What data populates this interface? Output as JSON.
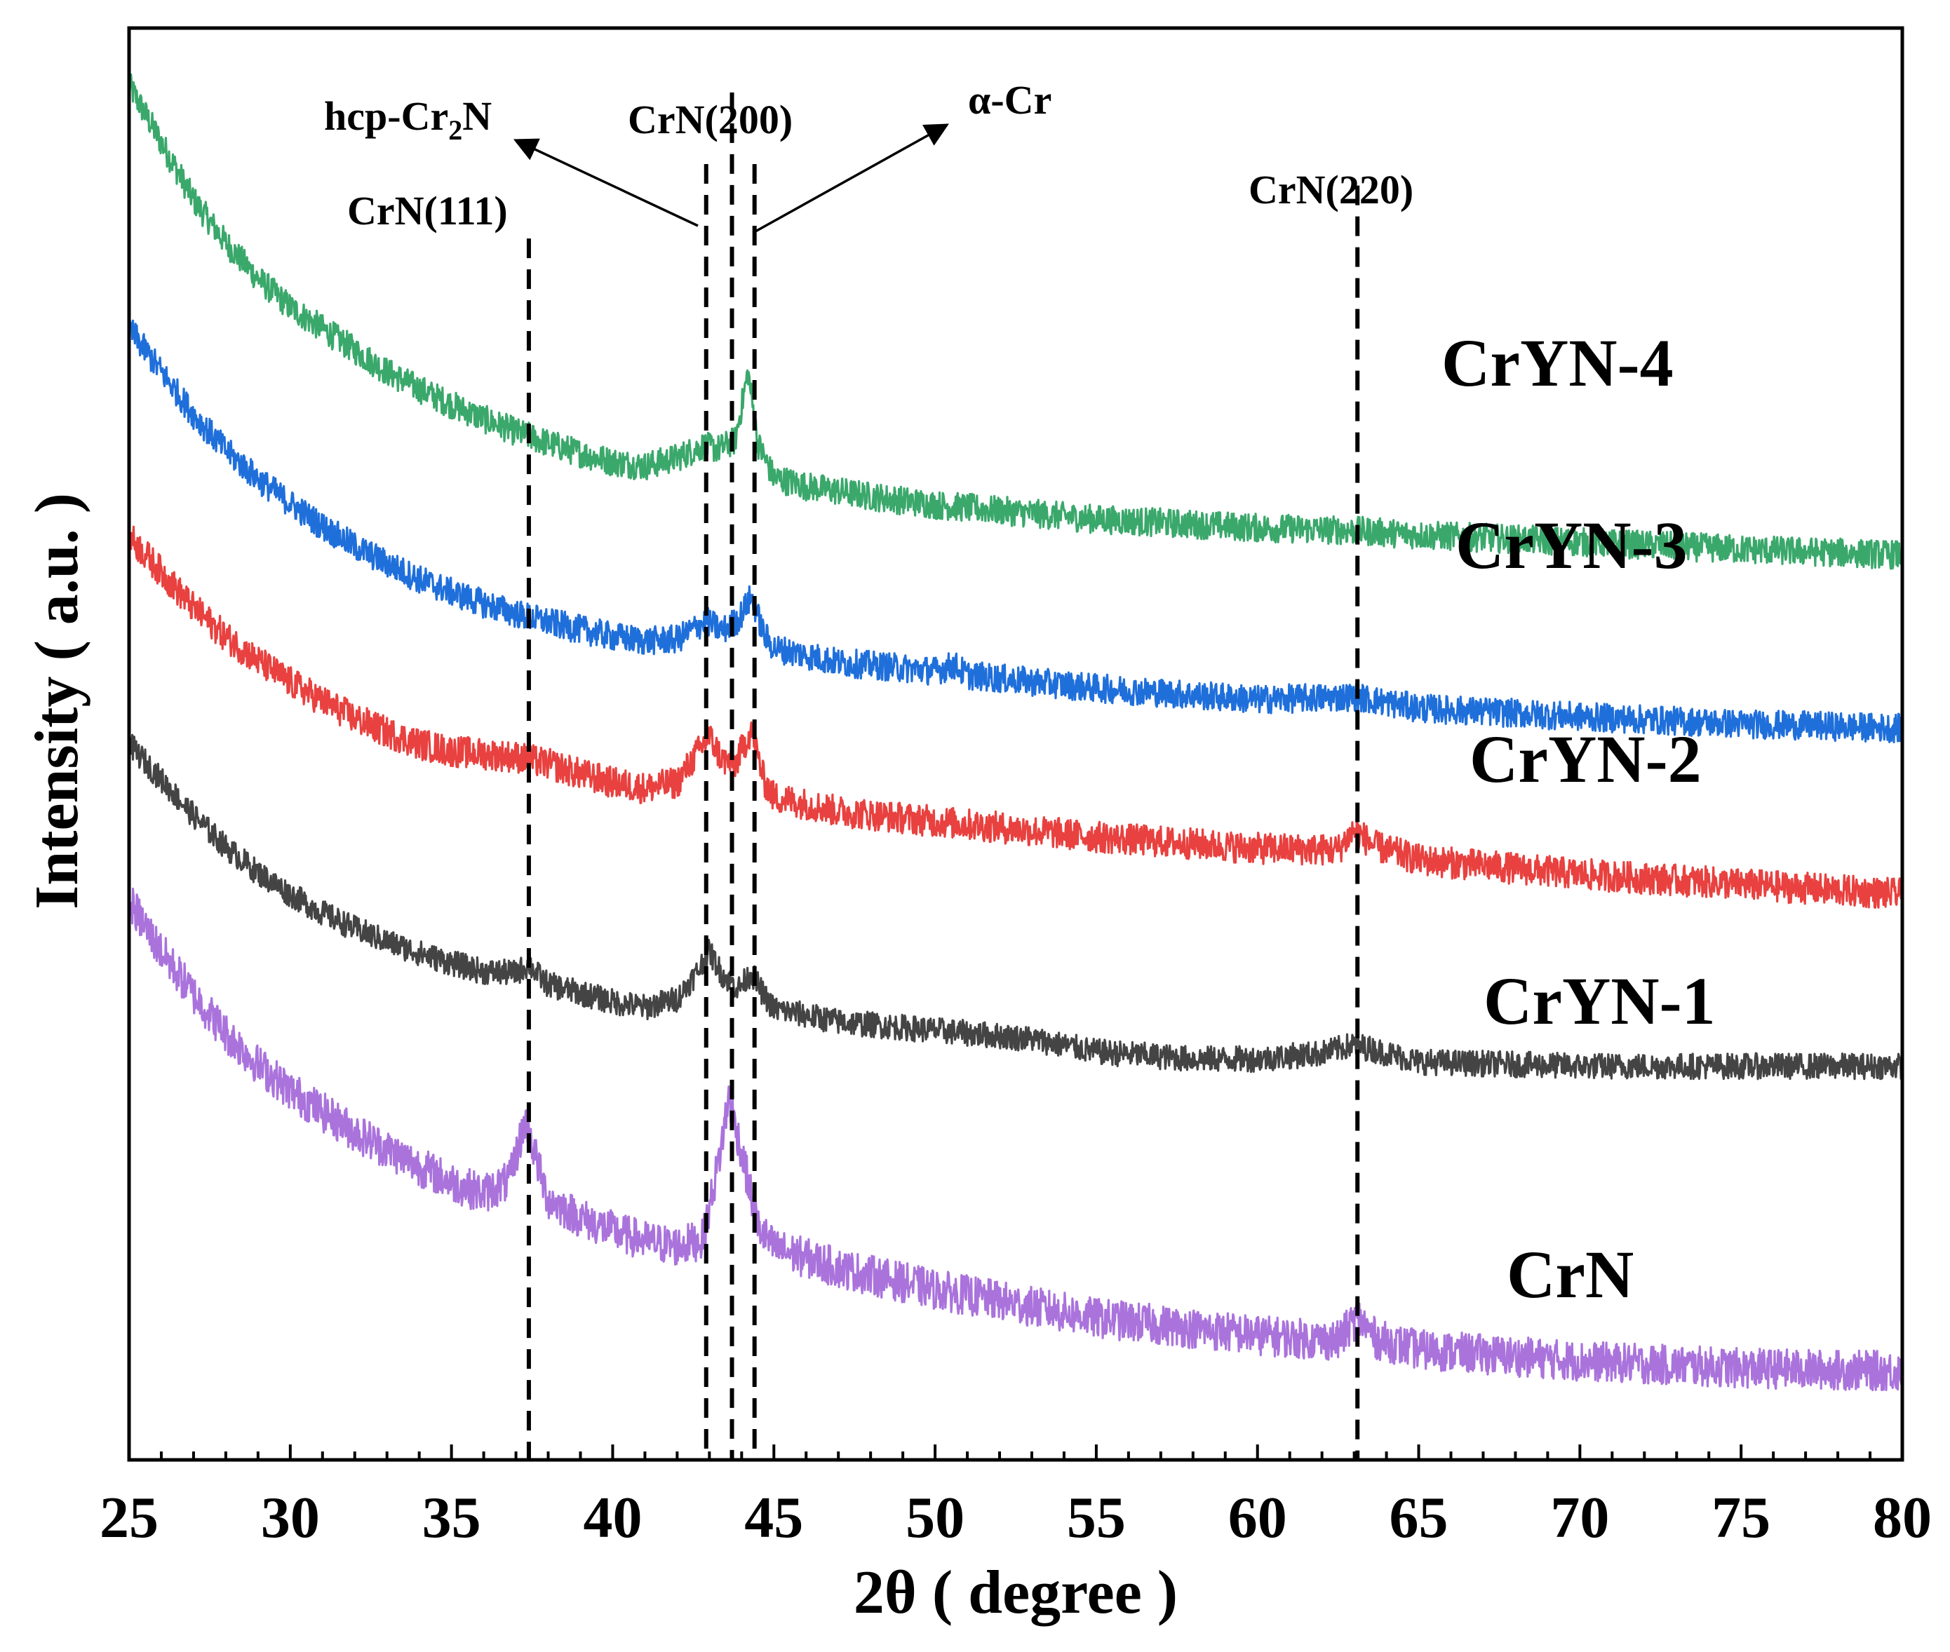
{
  "chart_data": {
    "type": "line",
    "title": "",
    "xlabel": "2θ ( degree )",
    "ylabel": "Intensity ( a.u. )",
    "xlim": [
      25,
      80
    ],
    "ylim": [
      0,
      100
    ],
    "x_ticks": [
      25,
      30,
      35,
      40,
      45,
      50,
      55,
      60,
      65,
      70,
      75,
      80
    ],
    "x_tick_labels": [
      "25",
      "30",
      "35",
      "40",
      "45",
      "50",
      "55",
      "60",
      "65",
      "70",
      "75",
      "80"
    ],
    "y_ticks_shown": false,
    "grid": false,
    "legend": "none (series labelled directly on the right)",
    "series": [
      {
        "name": "CrYN-4",
        "label": "CrYN-4",
        "color": "#3aa86b",
        "noise": 1.0,
        "points": [
          [
            25.0,
            96.0
          ],
          [
            26.0,
            92.0
          ],
          [
            27.0,
            88.0
          ],
          [
            28.0,
            85.0
          ],
          [
            29.0,
            82.5
          ],
          [
            30.0,
            80.5
          ],
          [
            31.0,
            79.0
          ],
          [
            32.0,
            77.5
          ],
          [
            33.0,
            76.0
          ],
          [
            34.0,
            74.8
          ],
          [
            35.0,
            73.7
          ],
          [
            36.0,
            72.7
          ],
          [
            37.0,
            71.8
          ],
          [
            38.0,
            71.0
          ],
          [
            39.0,
            70.3
          ],
          [
            40.0,
            69.7
          ],
          [
            41.0,
            69.4
          ],
          [
            42.0,
            70.0
          ],
          [
            42.8,
            70.8
          ],
          [
            43.3,
            70.6
          ],
          [
            43.8,
            71.2
          ],
          [
            44.2,
            76.0
          ],
          [
            44.5,
            71.0
          ],
          [
            45.0,
            68.6
          ],
          [
            46.0,
            68.0
          ],
          [
            48.0,
            67.3
          ],
          [
            50.0,
            66.7
          ],
          [
            55.0,
            65.7
          ],
          [
            60.0,
            65.1
          ],
          [
            63.0,
            64.9
          ],
          [
            65.0,
            64.6
          ],
          [
            70.0,
            64.1
          ],
          [
            75.0,
            63.6
          ],
          [
            80.0,
            63.2
          ]
        ]
      },
      {
        "name": "CrYN-3",
        "label": "CrYN-3",
        "color": "#1f6fdb",
        "noise": 1.0,
        "points": [
          [
            25.0,
            79.0
          ],
          [
            26.0,
            76.0
          ],
          [
            27.0,
            73.0
          ],
          [
            28.0,
            70.5
          ],
          [
            29.0,
            68.5
          ],
          [
            30.0,
            66.8
          ],
          [
            31.0,
            65.2
          ],
          [
            32.0,
            63.8
          ],
          [
            33.0,
            62.6
          ],
          [
            34.0,
            61.5
          ],
          [
            35.0,
            60.6
          ],
          [
            36.0,
            59.8
          ],
          [
            37.0,
            59.1
          ],
          [
            38.0,
            58.5
          ],
          [
            39.0,
            58.0
          ],
          [
            40.0,
            57.5
          ],
          [
            41.0,
            57.2
          ],
          [
            42.0,
            57.3
          ],
          [
            42.9,
            58.6
          ],
          [
            43.4,
            57.9
          ],
          [
            43.9,
            58.7
          ],
          [
            44.3,
            60.3
          ],
          [
            44.7,
            57.6
          ],
          [
            45.0,
            56.7
          ],
          [
            47.0,
            55.7
          ],
          [
            50.0,
            55.1
          ],
          [
            50.6,
            55.5
          ],
          [
            51.0,
            54.8
          ],
          [
            55.0,
            53.9
          ],
          [
            60.0,
            53.1
          ],
          [
            63.0,
            53.3
          ],
          [
            65.0,
            52.5
          ],
          [
            70.0,
            51.9
          ],
          [
            75.0,
            51.4
          ],
          [
            80.0,
            51.1
          ]
        ]
      },
      {
        "name": "CrYN-2",
        "label": "CrYN-2",
        "color": "#e8413f",
        "noise": 1.1,
        "points": [
          [
            25.0,
            64.5
          ],
          [
            26.0,
            62.0
          ],
          [
            27.0,
            59.5
          ],
          [
            28.0,
            57.5
          ],
          [
            29.0,
            55.8
          ],
          [
            30.0,
            54.3
          ],
          [
            31.0,
            53.0
          ],
          [
            32.0,
            51.8
          ],
          [
            33.0,
            50.8
          ],
          [
            34.0,
            50.0
          ],
          [
            35.0,
            49.5
          ],
          [
            36.0,
            49.3
          ],
          [
            37.0,
            49.1
          ],
          [
            38.0,
            48.6
          ],
          [
            39.0,
            47.9
          ],
          [
            40.0,
            47.3
          ],
          [
            41.0,
            46.9
          ],
          [
            42.0,
            47.3
          ],
          [
            42.6,
            49.3
          ],
          [
            43.0,
            50.5
          ],
          [
            43.4,
            48.9
          ],
          [
            43.8,
            48.6
          ],
          [
            44.3,
            51.0
          ],
          [
            44.7,
            47.4
          ],
          [
            45.0,
            46.3
          ],
          [
            47.0,
            45.3
          ],
          [
            50.0,
            44.6
          ],
          [
            55.0,
            43.5
          ],
          [
            60.0,
            42.7
          ],
          [
            62.5,
            42.6
          ],
          [
            63.0,
            44.0
          ],
          [
            63.6,
            42.9
          ],
          [
            65.0,
            41.9
          ],
          [
            70.0,
            40.9
          ],
          [
            75.0,
            40.2
          ],
          [
            80.0,
            39.5
          ]
        ]
      },
      {
        "name": "CrYN-1",
        "label": "CrYN-1",
        "color": "#444444",
        "noise": 0.9,
        "points": [
          [
            25.0,
            50.0
          ],
          [
            26.0,
            47.5
          ],
          [
            27.0,
            45.0
          ],
          [
            28.0,
            42.8
          ],
          [
            29.0,
            41.0
          ],
          [
            30.0,
            39.5
          ],
          [
            31.0,
            38.2
          ],
          [
            32.0,
            37.1
          ],
          [
            33.0,
            36.2
          ],
          [
            34.0,
            35.4
          ],
          [
            35.0,
            34.7
          ],
          [
            36.0,
            34.1
          ],
          [
            37.0,
            34.0
          ],
          [
            37.4,
            34.6
          ],
          [
            37.8,
            33.6
          ],
          [
            38.0,
            33.2
          ],
          [
            39.0,
            32.6
          ],
          [
            40.0,
            32.0
          ],
          [
            41.0,
            31.6
          ],
          [
            42.0,
            32.2
          ],
          [
            42.6,
            34.0
          ],
          [
            43.0,
            35.5
          ],
          [
            43.4,
            33.9
          ],
          [
            43.9,
            32.9
          ],
          [
            44.3,
            34.0
          ],
          [
            44.7,
            32.4
          ],
          [
            45.0,
            31.5
          ],
          [
            47.0,
            30.6
          ],
          [
            50.0,
            30.0
          ],
          [
            53.0,
            29.4
          ],
          [
            55.0,
            28.5
          ],
          [
            58.0,
            28.0
          ],
          [
            60.0,
            28.0
          ],
          [
            62.0,
            28.4
          ],
          [
            63.0,
            29.0
          ],
          [
            64.0,
            28.4
          ],
          [
            65.0,
            27.8
          ],
          [
            70.0,
            27.5
          ],
          [
            75.0,
            27.5
          ],
          [
            80.0,
            27.5
          ]
        ]
      },
      {
        "name": "CrN",
        "label": "CrN",
        "color": "#aa73dc",
        "noise": 1.4,
        "points": [
          [
            25.0,
            39.0
          ],
          [
            26.0,
            35.5
          ],
          [
            27.0,
            32.5
          ],
          [
            28.0,
            29.8
          ],
          [
            29.0,
            27.6
          ],
          [
            30.0,
            25.8
          ],
          [
            31.0,
            24.3
          ],
          [
            32.0,
            22.9
          ],
          [
            33.0,
            21.7
          ],
          [
            34.0,
            20.5
          ],
          [
            35.0,
            19.4
          ],
          [
            36.0,
            18.6
          ],
          [
            36.8,
            19.5
          ],
          [
            37.3,
            23.8
          ],
          [
            37.8,
            19.6
          ],
          [
            38.0,
            18.2
          ],
          [
            39.0,
            16.9
          ],
          [
            40.0,
            16.0
          ],
          [
            41.0,
            15.3
          ],
          [
            42.0,
            14.9
          ],
          [
            42.8,
            15.4
          ],
          [
            43.3,
            21.0
          ],
          [
            43.6,
            25.3
          ],
          [
            44.0,
            21.5
          ],
          [
            44.5,
            16.3
          ],
          [
            45.0,
            14.8
          ],
          [
            47.0,
            13.4
          ],
          [
            50.0,
            11.9
          ],
          [
            55.0,
            9.9
          ],
          [
            60.0,
            8.7
          ],
          [
            62.5,
            8.3
          ],
          [
            63.1,
            10.0
          ],
          [
            63.7,
            8.4
          ],
          [
            65.0,
            7.7
          ],
          [
            70.0,
            6.9
          ],
          [
            75.0,
            6.4
          ],
          [
            80.0,
            6.2
          ]
        ]
      }
    ],
    "reference_lines": [
      {
        "name": "CrN(111)",
        "x": 37.4,
        "top": 85.3
      },
      {
        "name": "hcp-Cr2N",
        "x": 42.9,
        "top": 90.5
      },
      {
        "name": "CrN(200)",
        "x": 43.7,
        "top": 95.5
      },
      {
        "name": "alpha-Cr",
        "x": 44.4,
        "top": 90.5
      },
      {
        "name": "CrN(220)",
        "x": 63.1,
        "top": 89.0
      }
    ],
    "annotations": {
      "crn111": "CrN(111)",
      "hcp_main": "hcp-Cr",
      "hcp_sub": "2",
      "hcp_end": "N",
      "crn200": "CrN(200)",
      "alpha_cr": "α-Cr",
      "crn220": "CrN(220)"
    }
  }
}
